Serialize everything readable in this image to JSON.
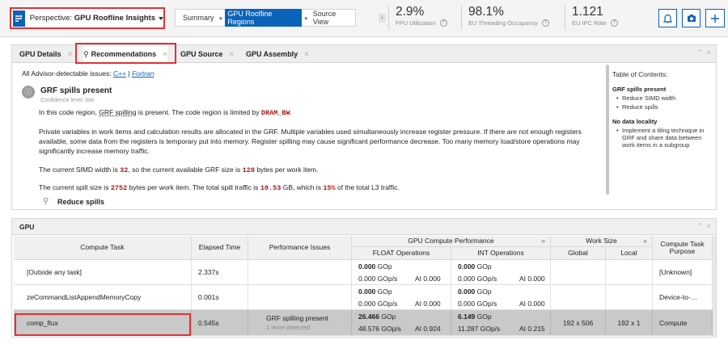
{
  "toolbar": {
    "perspective_prefix": "Perspective:",
    "perspective_name": "GPU Roofline Insights",
    "breadcrumbs": [
      "Summary",
      "GPU Roofline Regions",
      "Source View"
    ],
    "active_crumb": 1,
    "metrics": [
      {
        "value": "2.9%",
        "label": "FPU Utilization"
      },
      {
        "value": "98.1%",
        "label": "EU Threading Occupancy"
      },
      {
        "value": "1.121",
        "label": "EU IPC Rate"
      }
    ]
  },
  "tabs": [
    {
      "label": "GPU Details"
    },
    {
      "label": "Recommendations"
    },
    {
      "label": "GPU Source"
    },
    {
      "label": "GPU Assembly"
    }
  ],
  "recommendations": {
    "issues_prefix": "All Advisor-detectable issues:",
    "lang_cpp": "C++",
    "lang_sep": "|",
    "lang_fortran": "Fortran",
    "issue_title": "GRF spills present",
    "confidence": "Confidence level: low",
    "p1_a": "In this code region,",
    "p1_link": "GRF spilling",
    "p1_b": "is present. The code region is limited by",
    "p1_code": "DRAM_BW",
    "p1_end": ".",
    "p2": "Private variables in work items and calculation results are allocated in the GRF. Multiple variables used simultaneously increase register pressure. If there are not enough registers available, some data from the registers is temporary put into memory. Register spilling may cause significant performance decrease. Too many memory load/store operations may significantly increase memory traffic.",
    "p3_a": "The current SIMD width is",
    "p3_v1": "32",
    "p3_b": ", so the current available GRF size is",
    "p3_v2": "128",
    "p3_c": "bytes per work item.",
    "p4_a": "The current spill size is",
    "p4_v1": "2752",
    "p4_b": "bytes per work item. The total spill traffic is",
    "p4_v2": "10.53",
    "p4_c": "GB, which is",
    "p4_v3": "15%",
    "p4_d": "of the total L3 traffic.",
    "sub_title": "Reduce spills"
  },
  "toc": {
    "title": "Table of Contents:",
    "sections": [
      {
        "heading": "GRF spills present",
        "items": [
          "Reduce SIMD width",
          "Reduce spills"
        ]
      },
      {
        "heading": "No data locality",
        "items": [
          "Implement a tiling technique in GRF and share data between work items in a subgroup"
        ]
      }
    ]
  },
  "gpu_table": {
    "title": "GPU",
    "headers": {
      "compute_task": "Compute Task",
      "elapsed": "Elapsed Time",
      "issues": "Performance Issues",
      "perf_group": "GPU Compute Performance",
      "float_ops": "FLOAT Operations",
      "int_ops": "INT Operations",
      "work_group": "Work Size",
      "global": "Global",
      "local": "Local",
      "purpose": "Compute Task Purpose"
    },
    "rows": [
      {
        "task": "[Outside any task]",
        "elapsed": "2.337s",
        "issue": "",
        "issue_sub": "",
        "float_gop": "0.000",
        "float_gops": "0.000 GOp/s",
        "float_ai": "AI 0.000",
        "int_gop": "0.000",
        "int_gops": "0.000 GOp/s",
        "int_ai": "AI 0.000",
        "global": "",
        "local": "",
        "purpose": "[Unknown]"
      },
      {
        "task": "zeCommandListAppendMemoryCopy",
        "elapsed": "0.001s",
        "issue": "",
        "issue_sub": "",
        "float_gop": "0.000",
        "float_gops": "0.000 GOp/s",
        "float_ai": "AI 0.000",
        "int_gop": "0.000",
        "int_gops": "0.000 GOp/s",
        "int_ai": "AI 0.000",
        "global": "",
        "local": "",
        "purpose": "Device-to-…"
      },
      {
        "task": "comp_flux",
        "elapsed": "0.545s",
        "issue": "GRF spilling present",
        "issue_sub": "1 more detected",
        "float_gop": "26.466",
        "float_gops": "48.576 GOp/s",
        "float_ai": "AI 0.924",
        "int_gop": "6.149",
        "int_gops": "11.287 GOp/s",
        "int_ai": "AI 0.215",
        "global": "192 x 506",
        "local": "192 x 1",
        "purpose": "Compute"
      }
    ],
    "gop_unit": "GOp"
  }
}
